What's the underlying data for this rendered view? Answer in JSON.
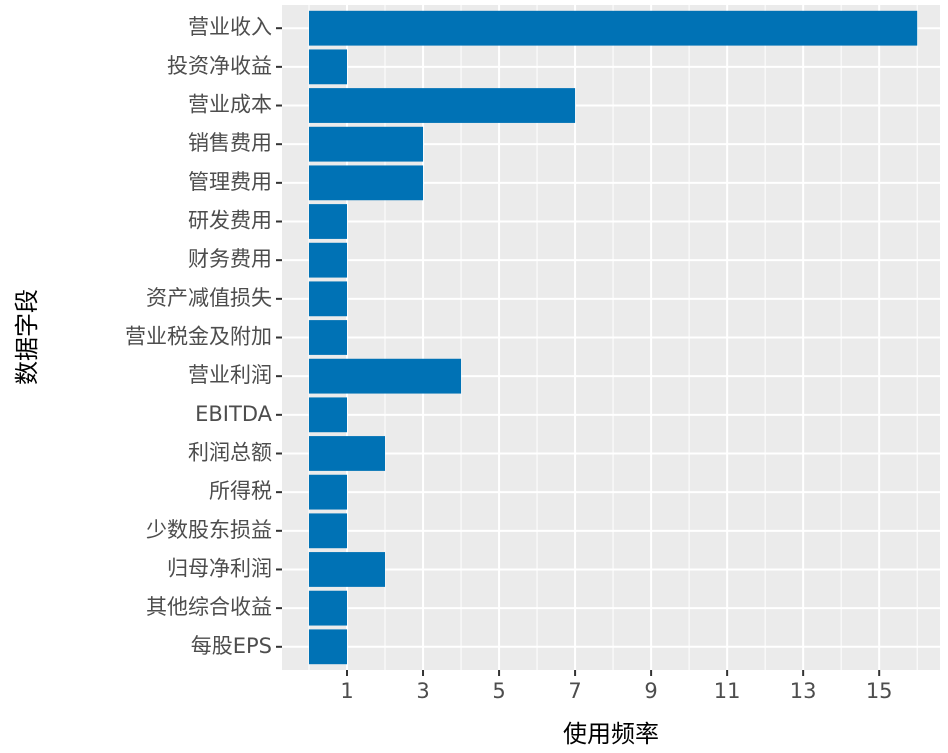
{
  "chart_data": {
    "type": "barh",
    "categories": [
      "营业收入",
      "投资净收益",
      "营业成本",
      "销售费用",
      "管理费用",
      "研发费用",
      "财务费用",
      "资产减值损失",
      "营业税金及附加",
      "营业利润",
      "EBITDA",
      "利润总额",
      "所得税",
      "少数股东损益",
      "归母净利润",
      "其他综合收益",
      "每股EPS"
    ],
    "values": [
      16,
      1,
      7,
      3,
      3,
      1,
      1,
      1,
      1,
      4,
      1,
      2,
      1,
      1,
      2,
      1,
      1
    ],
    "color": "#0072b5",
    "xlim": [
      -0.71,
      16.6
    ],
    "xticks": [
      1,
      3,
      5,
      7,
      9,
      11,
      13,
      15
    ],
    "x_label": "使用频率",
    "y_label": "数据字段",
    "grid": true
  }
}
